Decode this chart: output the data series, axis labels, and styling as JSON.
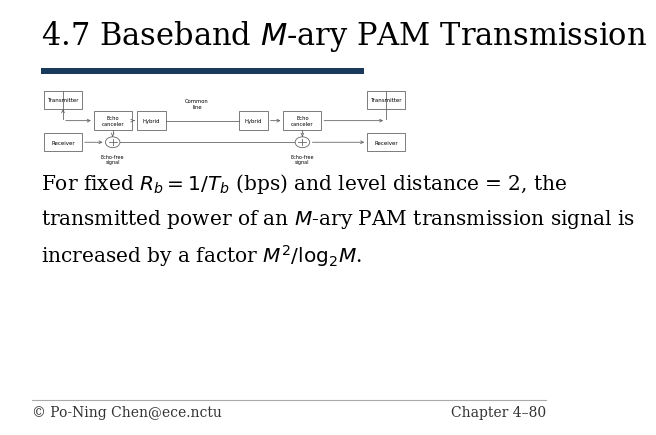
{
  "title_text": "4.7 Baseband $\\mathit{M}$-ary PAM Transmission",
  "bar_color": "#1a3a5c",
  "footer_left": "© Po-Ning Chen@ece.nctu",
  "footer_right": "Chapter 4–80",
  "bg_color": "#ffffff",
  "text_color": "#000000",
  "title_fontsize": 22,
  "body_fontsize": 14.5,
  "footer_fontsize": 10
}
